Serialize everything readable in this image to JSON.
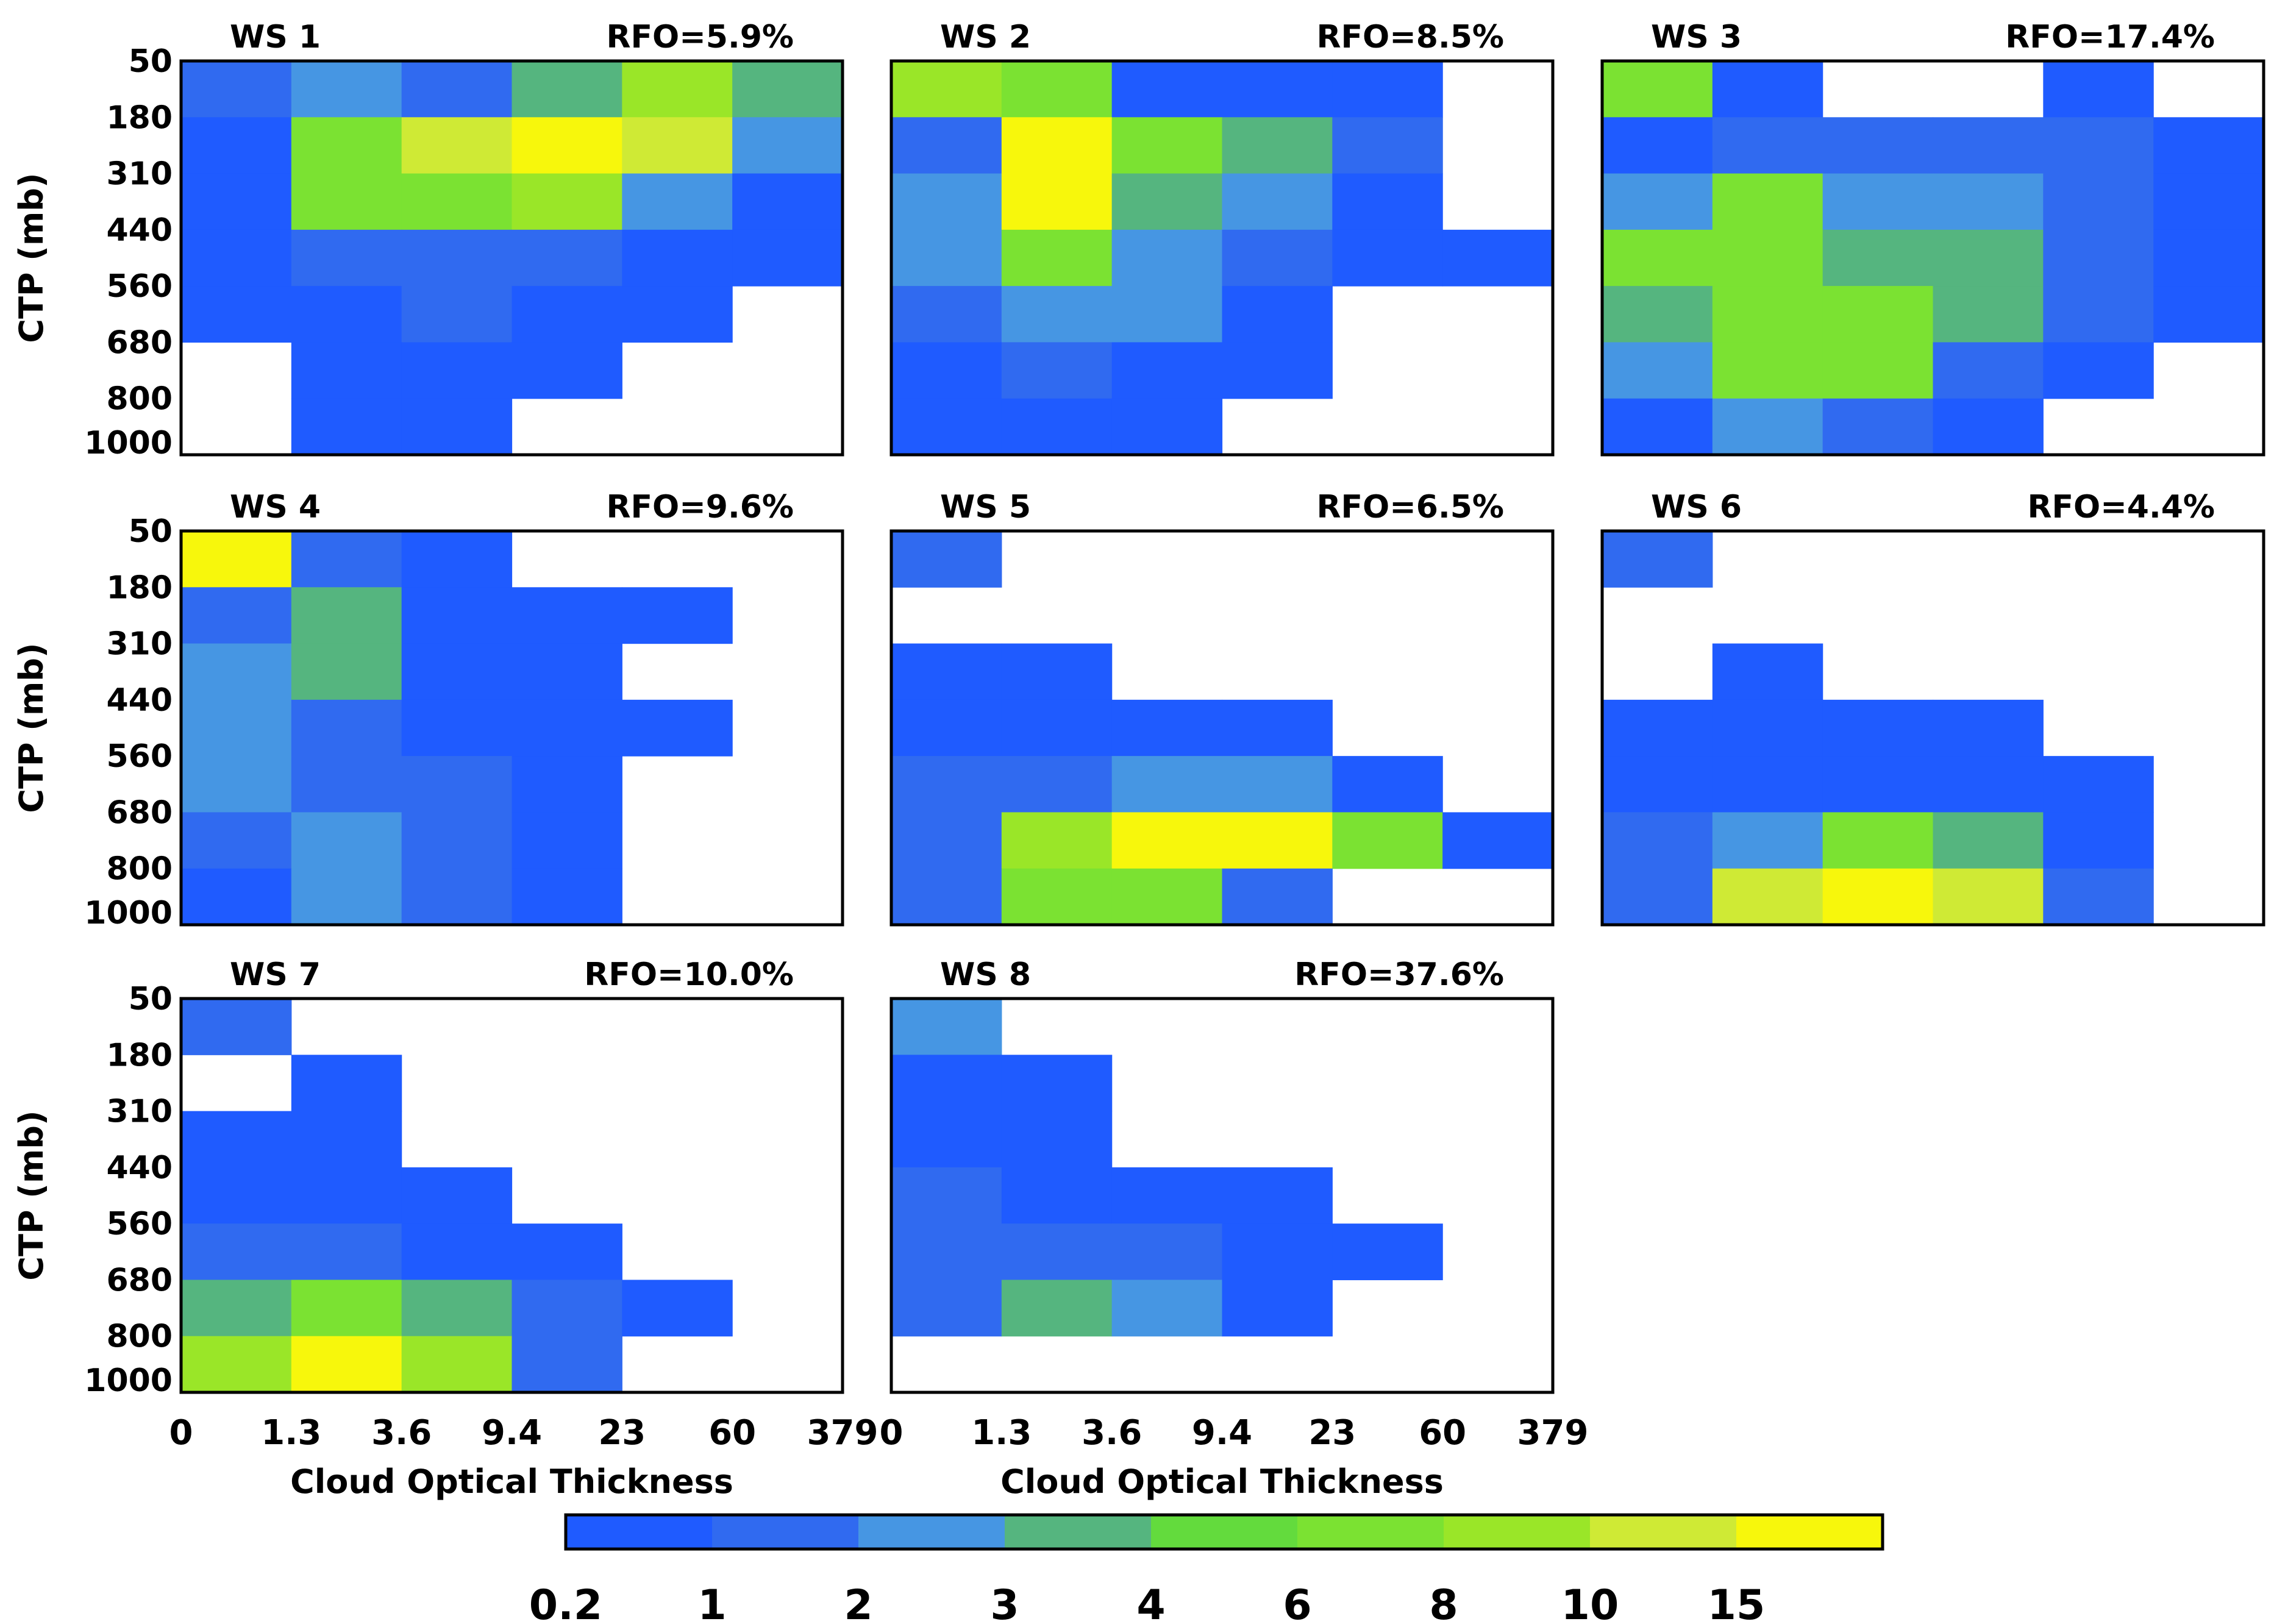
{
  "figure": {
    "ylabel": "CTP (mb)",
    "xlabel": "Cloud  Optical  Thickness",
    "ctp_ticks": [
      "50",
      "180",
      "310",
      "440",
      "560",
      "680",
      "800",
      "1000"
    ],
    "tau_ticks": [
      "0",
      "1.3",
      "3.6",
      "9.4",
      "23",
      "60",
      "379"
    ]
  },
  "colorbar": {
    "labels": [
      "0.2",
      "1",
      "2",
      "3",
      "4",
      "6",
      "8",
      "10",
      "15"
    ],
    "colors": [
      "#1f5bff",
      "#306af0",
      "#4696e3",
      "#55b57f",
      "#63db3d",
      "#7be232",
      "#9ae628",
      "#cfea35",
      "#f7f70c"
    ]
  },
  "chart_data": [
    {
      "type": "heatmap",
      "title": "WS  1",
      "rfo": "RFO=5.9%",
      "xlabel": "Cloud Optical Thickness",
      "ylabel": "CTP (mb)",
      "x_bins": [
        "0-1.3",
        "1.3-3.6",
        "3.6-9.4",
        "9.4-23",
        "23-60",
        "60-379"
      ],
      "y_bins": [
        "50-180",
        "180-310",
        "310-440",
        "440-560",
        "560-680",
        "680-800",
        "800-1000"
      ],
      "values": [
        [
          1,
          2,
          1,
          3,
          8,
          3
        ],
        [
          0.2,
          6,
          10,
          15,
          10,
          2
        ],
        [
          0.2,
          6,
          6,
          8,
          2,
          0.2
        ],
        [
          0.2,
          1,
          1,
          1,
          0.2,
          0.2
        ],
        [
          0.2,
          0.2,
          1,
          0.2,
          0.2,
          null
        ],
        [
          null,
          0.2,
          0.2,
          0.2,
          null,
          null
        ],
        [
          null,
          0.2,
          0.2,
          null,
          null,
          null
        ]
      ]
    },
    {
      "type": "heatmap",
      "title": "WS  2",
      "rfo": "RFO=8.5%",
      "xlabel": "Cloud Optical Thickness",
      "ylabel": "CTP (mb)",
      "x_bins": [
        "0-1.3",
        "1.3-3.6",
        "3.6-9.4",
        "9.4-23",
        "23-60",
        "60-379"
      ],
      "y_bins": [
        "50-180",
        "180-310",
        "310-440",
        "440-560",
        "560-680",
        "680-800",
        "800-1000"
      ],
      "values": [
        [
          8,
          6,
          0.2,
          0.2,
          0.2,
          null
        ],
        [
          1,
          15,
          6,
          3,
          1,
          null
        ],
        [
          2,
          15,
          3,
          2,
          0.2,
          null
        ],
        [
          2,
          6,
          2,
          1,
          0.2,
          0.2
        ],
        [
          1,
          2,
          2,
          0.2,
          null,
          null
        ],
        [
          0.2,
          1,
          0.2,
          0.2,
          null,
          null
        ],
        [
          0.2,
          0.2,
          0.2,
          null,
          null,
          null
        ]
      ]
    },
    {
      "type": "heatmap",
      "title": "WS  3",
      "rfo": "RFO=17.4%",
      "xlabel": "Cloud Optical Thickness",
      "ylabel": "CTP (mb)",
      "x_bins": [
        "0-1.3",
        "1.3-3.6",
        "3.6-9.4",
        "9.4-23",
        "23-60",
        "60-379"
      ],
      "y_bins": [
        "50-180",
        "180-310",
        "310-440",
        "440-560",
        "560-680",
        "680-800",
        "800-1000"
      ],
      "values": [
        [
          6,
          0.2,
          null,
          null,
          0.2,
          null
        ],
        [
          0.2,
          1,
          1,
          1,
          1,
          0.2
        ],
        [
          2,
          6,
          2,
          2,
          1,
          0.2
        ],
        [
          6,
          6,
          3,
          3,
          1,
          0.2
        ],
        [
          3,
          6,
          6,
          3,
          1,
          0.2
        ],
        [
          2,
          6,
          6,
          1,
          0.2,
          null
        ],
        [
          0.2,
          2,
          1,
          0.2,
          null,
          null
        ]
      ]
    },
    {
      "type": "heatmap",
      "title": "WS  4",
      "rfo": "RFO=9.6%",
      "xlabel": "Cloud Optical Thickness",
      "ylabel": "CTP (mb)",
      "x_bins": [
        "0-1.3",
        "1.3-3.6",
        "3.6-9.4",
        "9.4-23",
        "23-60",
        "60-379"
      ],
      "y_bins": [
        "50-180",
        "180-310",
        "310-440",
        "440-560",
        "560-680",
        "680-800",
        "800-1000"
      ],
      "values": [
        [
          15,
          1,
          0.2,
          null,
          null,
          null
        ],
        [
          1,
          3,
          0.2,
          0.2,
          0.2,
          null
        ],
        [
          2,
          3,
          0.2,
          0.2,
          null,
          null
        ],
        [
          2,
          1,
          0.2,
          0.2,
          0.2,
          null
        ],
        [
          2,
          1,
          1,
          0.2,
          null,
          null
        ],
        [
          1,
          2,
          1,
          0.2,
          null,
          null
        ],
        [
          0.2,
          2,
          1,
          0.2,
          null,
          null
        ]
      ]
    },
    {
      "type": "heatmap",
      "title": "WS  5",
      "rfo": "RFO=6.5%",
      "xlabel": "Cloud Optical Thickness",
      "ylabel": "CTP (mb)",
      "x_bins": [
        "0-1.3",
        "1.3-3.6",
        "3.6-9.4",
        "9.4-23",
        "23-60",
        "60-379"
      ],
      "y_bins": [
        "50-180",
        "180-310",
        "310-440",
        "440-560",
        "560-680",
        "680-800",
        "800-1000"
      ],
      "values": [
        [
          1,
          null,
          null,
          null,
          null,
          null
        ],
        [
          null,
          null,
          null,
          null,
          null,
          null
        ],
        [
          0.2,
          0.2,
          null,
          null,
          null,
          null
        ],
        [
          0.2,
          0.2,
          0.2,
          0.2,
          null,
          null
        ],
        [
          1,
          1,
          2,
          2,
          0.2,
          null
        ],
        [
          1,
          8,
          15,
          15,
          6,
          0.2
        ],
        [
          1,
          6,
          6,
          1,
          null,
          null
        ]
      ]
    },
    {
      "type": "heatmap",
      "title": "WS  6",
      "rfo": "RFO=4.4%",
      "xlabel": "Cloud Optical Thickness",
      "ylabel": "CTP (mb)",
      "x_bins": [
        "0-1.3",
        "1.3-3.6",
        "3.6-9.4",
        "9.4-23",
        "23-60",
        "60-379"
      ],
      "y_bins": [
        "50-180",
        "180-310",
        "310-440",
        "440-560",
        "560-680",
        "680-800",
        "800-1000"
      ],
      "values": [
        [
          1,
          null,
          null,
          null,
          null,
          null
        ],
        [
          null,
          null,
          null,
          null,
          null,
          null
        ],
        [
          null,
          0.2,
          null,
          null,
          null,
          null
        ],
        [
          0.2,
          0.2,
          0.2,
          0.2,
          null,
          null
        ],
        [
          0.2,
          0.2,
          0.2,
          0.2,
          0.2,
          null
        ],
        [
          1,
          2,
          6,
          3,
          0.2,
          null
        ],
        [
          1,
          10,
          15,
          10,
          1,
          null
        ]
      ]
    },
    {
      "type": "heatmap",
      "title": "WS  7",
      "rfo": "RFO=10.0%",
      "xlabel": "Cloud Optical Thickness",
      "ylabel": "CTP (mb)",
      "x_bins": [
        "0-1.3",
        "1.3-3.6",
        "3.6-9.4",
        "9.4-23",
        "23-60",
        "60-379"
      ],
      "y_bins": [
        "50-180",
        "180-310",
        "310-440",
        "440-560",
        "560-680",
        "680-800",
        "800-1000"
      ],
      "values": [
        [
          1,
          null,
          null,
          null,
          null,
          null
        ],
        [
          null,
          0.2,
          null,
          null,
          null,
          null
        ],
        [
          0.2,
          0.2,
          null,
          null,
          null,
          null
        ],
        [
          0.2,
          0.2,
          0.2,
          null,
          null,
          null
        ],
        [
          1,
          1,
          0.2,
          0.2,
          null,
          null
        ],
        [
          3,
          6,
          3,
          1,
          0.2,
          null
        ],
        [
          8,
          15,
          8,
          1,
          null,
          null
        ]
      ]
    },
    {
      "type": "heatmap",
      "title": "WS  8",
      "rfo": "RFO=37.6%",
      "xlabel": "Cloud Optical Thickness",
      "ylabel": "CTP (mb)",
      "x_bins": [
        "0-1.3",
        "1.3-3.6",
        "3.6-9.4",
        "9.4-23",
        "23-60",
        "60-379"
      ],
      "y_bins": [
        "50-180",
        "180-310",
        "310-440",
        "440-560",
        "560-680",
        "680-800",
        "800-1000"
      ],
      "values": [
        [
          2,
          null,
          null,
          null,
          null,
          null
        ],
        [
          0.2,
          0.2,
          null,
          null,
          null,
          null
        ],
        [
          0.2,
          0.2,
          null,
          null,
          null,
          null
        ],
        [
          1,
          0.2,
          0.2,
          0.2,
          null,
          null
        ],
        [
          1,
          1,
          1,
          0.2,
          0.2,
          null
        ],
        [
          1,
          3,
          2,
          0.2,
          null,
          null
        ],
        [
          null,
          null,
          null,
          null,
          null,
          null
        ]
      ]
    }
  ]
}
